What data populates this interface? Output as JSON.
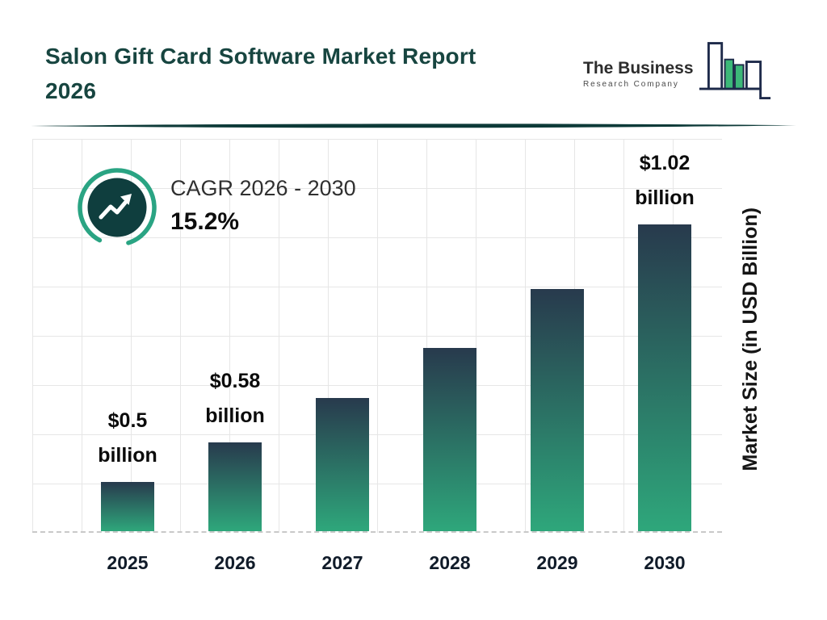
{
  "header": {
    "title_line1": "Salon Gift Card Software Market Report",
    "title_line2": "2026"
  },
  "logo": {
    "line1": "The Business",
    "line2": "Research Company"
  },
  "cagr": {
    "label": "CAGR 2026 - 2030",
    "value": "15.2%"
  },
  "chart_data": {
    "type": "bar",
    "title": "Salon Gift Card Software Market Report 2026",
    "categories": [
      "2025",
      "2026",
      "2027",
      "2028",
      "2029",
      "2030"
    ],
    "values": [
      0.5,
      0.58,
      0.67,
      0.77,
      0.89,
      1.02
    ],
    "value_labels": [
      "$0.5",
      "$0.58",
      "",
      "",
      "",
      "$1.02"
    ],
    "value_label_word": "billion",
    "unit": "USD Billion",
    "ylabel": "Market Size (in USD Billion)",
    "xlabel": "",
    "ylim": [
      0.4,
      1.02
    ],
    "grid": true,
    "legend": false,
    "cagr_annotation": "CAGR 2026 - 2030: 15.2%",
    "colors": {
      "bar_top": "#283a4d",
      "bar_bottom": "#2ea77b"
    }
  },
  "colors": {
    "title": "#174540",
    "divider": "#0d3a38",
    "logo_navy": "#1e2a4a",
    "logo_green": "#3cb878",
    "badge_ring": "#2aa483",
    "badge_fill": "#0f3e3e",
    "grid_line": "#e6e6e6"
  }
}
